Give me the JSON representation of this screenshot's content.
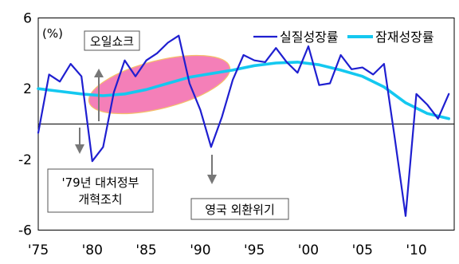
{
  "chart_data": {
    "type": "line",
    "unit_label": "(%)",
    "xlim": [
      1975,
      2013.5
    ],
    "ylim": [
      -6,
      6
    ],
    "y_ticks": [
      6,
      2,
      -2,
      -6
    ],
    "y_tick_labels": [
      "6",
      "2",
      "-2",
      "-6"
    ],
    "x_ticks": [
      1975,
      1980,
      1985,
      1990,
      1995,
      2000,
      2005,
      2010
    ],
    "x_tick_labels": [
      "'75",
      "'80",
      "'85",
      "'90",
      "'95",
      "'00",
      "'05",
      "'10"
    ],
    "series": [
      {
        "name": "실질성장률",
        "color": "#1f1fd0",
        "x": [
          1975,
          1976,
          1977,
          1978,
          1979,
          1980,
          1981,
          1982,
          1983,
          1984,
          1985,
          1986,
          1987,
          1988,
          1989,
          1990,
          1991,
          1992,
          1993,
          1994,
          1995,
          1996,
          1997,
          1998,
          1999,
          2000,
          2001,
          2002,
          2003,
          2004,
          2005,
          2006,
          2007,
          2008,
          2009,
          2010,
          2011,
          2012,
          2013
        ],
        "values": [
          -0.5,
          2.8,
          2.4,
          3.4,
          2.7,
          -2.1,
          -1.3,
          1.8,
          3.6,
          2.7,
          3.6,
          4.0,
          4.6,
          5.0,
          2.3,
          0.8,
          -1.3,
          0.4,
          2.5,
          3.9,
          3.6,
          3.5,
          4.3,
          3.5,
          2.9,
          4.4,
          2.2,
          2.3,
          3.9,
          3.1,
          3.2,
          2.8,
          3.4,
          -0.8,
          -5.2,
          1.7,
          1.1,
          0.3,
          1.7
        ]
      },
      {
        "name": "잠재성장률",
        "color": "#14c8f0",
        "x": [
          1975,
          1977,
          1979,
          1981,
          1983,
          1985,
          1987,
          1989,
          1991,
          1993,
          1995,
          1997,
          1999,
          2001,
          2003,
          2005,
          2007,
          2009,
          2011,
          2013
        ],
        "values": [
          2.0,
          1.85,
          1.7,
          1.6,
          1.7,
          1.95,
          2.3,
          2.65,
          2.85,
          3.05,
          3.3,
          3.45,
          3.5,
          3.35,
          3.05,
          2.7,
          2.1,
          1.2,
          0.6,
          0.3
        ]
      }
    ],
    "annotations": [
      {
        "label": "오일쇼크"
      },
      {
        "label": "'79년 대처정부\n개혁조치"
      },
      {
        "label": "영국 외환위기"
      }
    ],
    "highlight_color": "#f47fb8"
  }
}
